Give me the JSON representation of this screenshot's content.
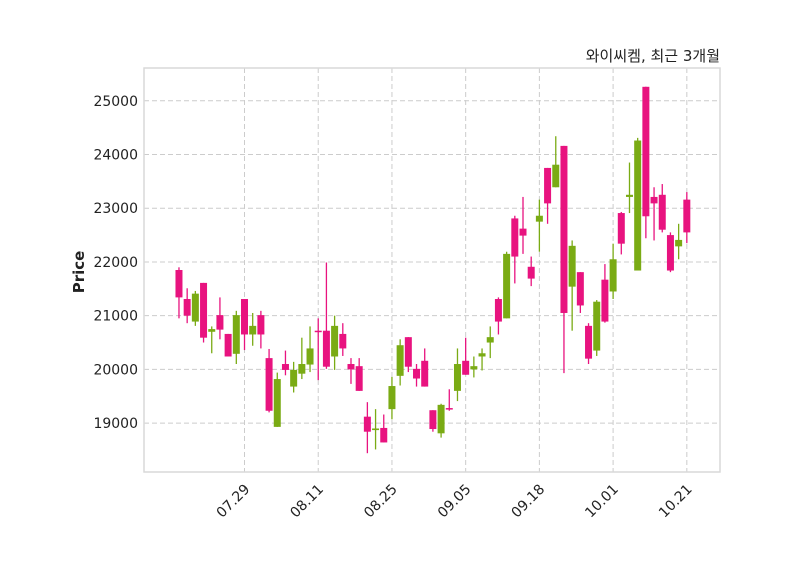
{
  "chart_data": {
    "type": "candlestick",
    "title": "와이씨켐, 최근 3개월",
    "xlabel": "",
    "ylabel": "Price",
    "ylim": [
      18090,
      25610
    ],
    "xlim": [
      -4.27,
      66.05
    ],
    "grid": true,
    "colors": {
      "up": "#e8137f",
      "down": "#7aab14",
      "grid": "#cccccc",
      "frame": "#d9d9d9"
    },
    "yticks": [
      19000,
      20000,
      21000,
      22000,
      23000,
      24000,
      25000
    ],
    "ytick_labels": [
      "19000",
      "20000",
      "21000",
      "22000",
      "23000",
      "24000",
      "25000"
    ],
    "xticks": [
      {
        "index": 8,
        "label": "07.29"
      },
      {
        "index": 17,
        "label": "08.11"
      },
      {
        "index": 26,
        "label": "08.25"
      },
      {
        "index": 35,
        "label": "09.05"
      },
      {
        "index": 44,
        "label": "09.18"
      },
      {
        "index": 53,
        "label": "10.01"
      },
      {
        "index": 62,
        "label": "10.21"
      }
    ],
    "ohlc_fields": [
      "open",
      "high",
      "low",
      "close"
    ],
    "ohlc": [
      [
        21340,
        21900,
        20950,
        21850
      ],
      [
        21000,
        21510,
        20860,
        21310
      ],
      [
        21410,
        21460,
        20810,
        20890
      ],
      [
        20590,
        21610,
        20500,
        21610
      ],
      [
        20750,
        20800,
        20300,
        20700
      ],
      [
        20740,
        21340,
        20560,
        21010
      ],
      [
        20240,
        20660,
        20240,
        20660
      ],
      [
        21010,
        21090,
        20100,
        20290
      ],
      [
        20650,
        21310,
        20360,
        21310
      ],
      [
        20810,
        21050,
        20440,
        20650
      ],
      [
        20650,
        21090,
        20390,
        21010
      ],
      [
        19230,
        20380,
        19200,
        20210
      ],
      [
        19820,
        19940,
        18930,
        18930
      ],
      [
        19990,
        20350,
        19890,
        20100
      ],
      [
        19990,
        20140,
        19570,
        19680
      ],
      [
        20100,
        20590,
        19820,
        19920
      ],
      [
        20390,
        20800,
        19950,
        20090
      ],
      [
        20700,
        20950,
        19800,
        20720
      ],
      [
        20050,
        21990,
        20010,
        20720
      ],
      [
        20810,
        21000,
        19990,
        20240
      ],
      [
        20390,
        20860,
        20250,
        20660
      ],
      [
        20000,
        20210,
        19730,
        20100
      ],
      [
        19600,
        20210,
        19600,
        20060
      ],
      [
        18840,
        19390,
        18440,
        19120
      ],
      [
        18900,
        19260,
        18510,
        18870
      ],
      [
        18640,
        19160,
        18640,
        18910
      ],
      [
        19690,
        19860,
        19070,
        19260
      ],
      [
        20450,
        20560,
        19700,
        19880
      ],
      [
        20050,
        20600,
        19950,
        20600
      ],
      [
        19830,
        20100,
        19680,
        20010
      ],
      [
        19680,
        20390,
        19680,
        20160
      ],
      [
        18890,
        19240,
        18840,
        19240
      ],
      [
        19340,
        19360,
        18730,
        18810
      ],
      [
        19270,
        19630,
        19230,
        19280
      ],
      [
        20100,
        20390,
        19410,
        19600
      ],
      [
        19900,
        20590,
        19900,
        20160
      ],
      [
        20060,
        20240,
        19850,
        20000
      ],
      [
        20300,
        20390,
        19980,
        20240
      ],
      [
        20600,
        20800,
        20210,
        20500
      ],
      [
        20890,
        21340,
        20650,
        21310
      ],
      [
        22150,
        22190,
        20950,
        20950
      ],
      [
        22100,
        22860,
        21600,
        22810
      ],
      [
        22490,
        23210,
        22150,
        22620
      ],
      [
        21690,
        22100,
        21550,
        21910
      ],
      [
        22860,
        23160,
        22190,
        22750
      ],
      [
        23090,
        23750,
        22710,
        23750
      ],
      [
        23810,
        24340,
        23390,
        23390
      ],
      [
        21050,
        24160,
        19930,
        24160
      ],
      [
        22300,
        22400,
        20720,
        21540
      ],
      [
        21190,
        21810,
        21050,
        21810
      ],
      [
        20200,
        20860,
        20100,
        20810
      ],
      [
        21260,
        21290,
        20250,
        20350
      ],
      [
        20890,
        21960,
        20870,
        21670
      ],
      [
        22050,
        22340,
        21310,
        21450
      ],
      [
        22340,
        22930,
        22140,
        22910
      ],
      [
        23250,
        23850,
        22910,
        23210
      ],
      [
        24260,
        24310,
        21840,
        21840
      ],
      [
        22850,
        25260,
        22440,
        25260
      ],
      [
        23090,
        23390,
        22400,
        23210
      ],
      [
        22600,
        23450,
        22550,
        23250
      ],
      [
        21840,
        22550,
        21810,
        22500
      ],
      [
        22410,
        22710,
        22050,
        22290
      ],
      [
        22550,
        23300,
        22350,
        23160
      ]
    ]
  }
}
